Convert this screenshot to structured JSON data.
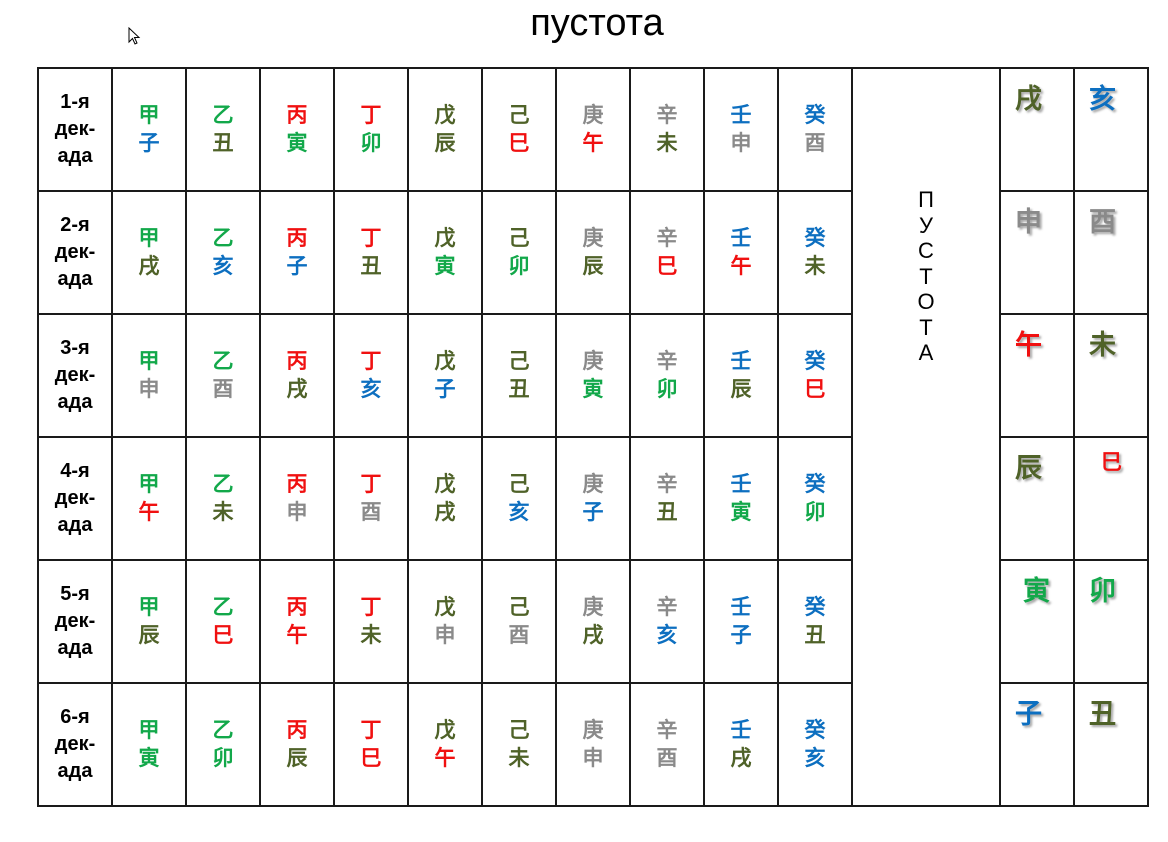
{
  "title": "пустота",
  "colors": {
    "green": "#12a84a",
    "olive": "#4f6228",
    "red": "#f01010",
    "blue": "#0d6fc0",
    "gray": "#8a8a8a"
  },
  "vertical_label": [
    "П",
    "У",
    "С",
    "Т",
    "О",
    "Т",
    "А"
  ],
  "rows": [
    {
      "label": [
        "1-я",
        "дек-",
        "ада"
      ],
      "cells": [
        [
          "甲",
          "green",
          "子",
          "blue"
        ],
        [
          "乙",
          "green",
          "丑",
          "olive"
        ],
        [
          "丙",
          "red",
          "寅",
          "green"
        ],
        [
          "丁",
          "red",
          "卯",
          "green"
        ],
        [
          "戊",
          "olive",
          "辰",
          "olive"
        ],
        [
          "己",
          "olive",
          "巳",
          "red"
        ],
        [
          "庚",
          "gray",
          "午",
          "red"
        ],
        [
          "辛",
          "gray",
          "未",
          "olive"
        ],
        [
          "壬",
          "blue",
          "申",
          "gray"
        ],
        [
          "癸",
          "blue",
          "酉",
          "gray"
        ]
      ],
      "emptiness": [
        [
          "戌",
          "olive"
        ],
        [
          "亥",
          "blue"
        ]
      ]
    },
    {
      "label": [
        "2-я",
        "дек-",
        "ада"
      ],
      "cells": [
        [
          "甲",
          "green",
          "戌",
          "olive"
        ],
        [
          "乙",
          "green",
          "亥",
          "blue"
        ],
        [
          "丙",
          "red",
          "子",
          "blue"
        ],
        [
          "丁",
          "red",
          "丑",
          "olive"
        ],
        [
          "戊",
          "olive",
          "寅",
          "green"
        ],
        [
          "己",
          "olive",
          "卯",
          "green"
        ],
        [
          "庚",
          "gray",
          "辰",
          "olive"
        ],
        [
          "辛",
          "gray",
          "巳",
          "red"
        ],
        [
          "壬",
          "blue",
          "午",
          "red"
        ],
        [
          "癸",
          "blue",
          "未",
          "olive"
        ]
      ],
      "emptiness": [
        [
          "申",
          "gray"
        ],
        [
          "酉",
          "gray"
        ]
      ]
    },
    {
      "label": [
        "3-я",
        "дек-",
        "ада"
      ],
      "cells": [
        [
          "甲",
          "green",
          "申",
          "gray"
        ],
        [
          "乙",
          "green",
          "酉",
          "gray"
        ],
        [
          "丙",
          "red",
          "戌",
          "olive"
        ],
        [
          "丁",
          "red",
          "亥",
          "blue"
        ],
        [
          "戊",
          "olive",
          "子",
          "blue"
        ],
        [
          "己",
          "olive",
          "丑",
          "olive"
        ],
        [
          "庚",
          "gray",
          "寅",
          "green"
        ],
        [
          "辛",
          "gray",
          "卯",
          "green"
        ],
        [
          "壬",
          "blue",
          "辰",
          "olive"
        ],
        [
          "癸",
          "blue",
          "巳",
          "red"
        ]
      ],
      "emptiness": [
        [
          "午",
          "red"
        ],
        [
          "未",
          "olive"
        ]
      ]
    },
    {
      "label": [
        "4-я",
        "дек-",
        "ада"
      ],
      "cells": [
        [
          "甲",
          "green",
          "午",
          "red"
        ],
        [
          "乙",
          "green",
          "未",
          "olive"
        ],
        [
          "丙",
          "red",
          "申",
          "gray"
        ],
        [
          "丁",
          "red",
          "酉",
          "gray"
        ],
        [
          "戊",
          "olive",
          "戌",
          "olive"
        ],
        [
          "己",
          "olive",
          "亥",
          "blue"
        ],
        [
          "庚",
          "gray",
          "子",
          "blue"
        ],
        [
          "辛",
          "gray",
          "丑",
          "olive"
        ],
        [
          "壬",
          "blue",
          "寅",
          "green"
        ],
        [
          "癸",
          "blue",
          "卯",
          "green"
        ]
      ],
      "emptiness": [
        [
          "辰",
          "olive"
        ],
        [
          "巳",
          "red"
        ]
      ]
    },
    {
      "label": [
        "5-я",
        "дек-",
        "ада"
      ],
      "cells": [
        [
          "甲",
          "green",
          "辰",
          "olive"
        ],
        [
          "乙",
          "green",
          "巳",
          "red"
        ],
        [
          "丙",
          "red",
          "午",
          "red"
        ],
        [
          "丁",
          "red",
          "未",
          "olive"
        ],
        [
          "戊",
          "olive",
          "申",
          "gray"
        ],
        [
          "己",
          "olive",
          "酉",
          "gray"
        ],
        [
          "庚",
          "gray",
          "戌",
          "olive"
        ],
        [
          "辛",
          "gray",
          "亥",
          "blue"
        ],
        [
          "壬",
          "blue",
          "子",
          "blue"
        ],
        [
          "癸",
          "blue",
          "丑",
          "olive"
        ]
      ],
      "emptiness": [
        [
          "寅",
          "green"
        ],
        [
          "卯",
          "green"
        ]
      ]
    },
    {
      "label": [
        "6-я",
        "дек-",
        "ада"
      ],
      "cells": [
        [
          "甲",
          "green",
          "寅",
          "green"
        ],
        [
          "乙",
          "green",
          "卯",
          "green"
        ],
        [
          "丙",
          "red",
          "辰",
          "olive"
        ],
        [
          "丁",
          "red",
          "巳",
          "red"
        ],
        [
          "戊",
          "olive",
          "午",
          "red"
        ],
        [
          "己",
          "olive",
          "未",
          "olive"
        ],
        [
          "庚",
          "gray",
          "申",
          "gray"
        ],
        [
          "辛",
          "gray",
          "酉",
          "gray"
        ],
        [
          "壬",
          "blue",
          "戌",
          "olive"
        ],
        [
          "癸",
          "blue",
          "亥",
          "blue"
        ]
      ],
      "emptiness": [
        [
          "子",
          "blue"
        ],
        [
          "丑",
          "olive"
        ]
      ]
    }
  ]
}
